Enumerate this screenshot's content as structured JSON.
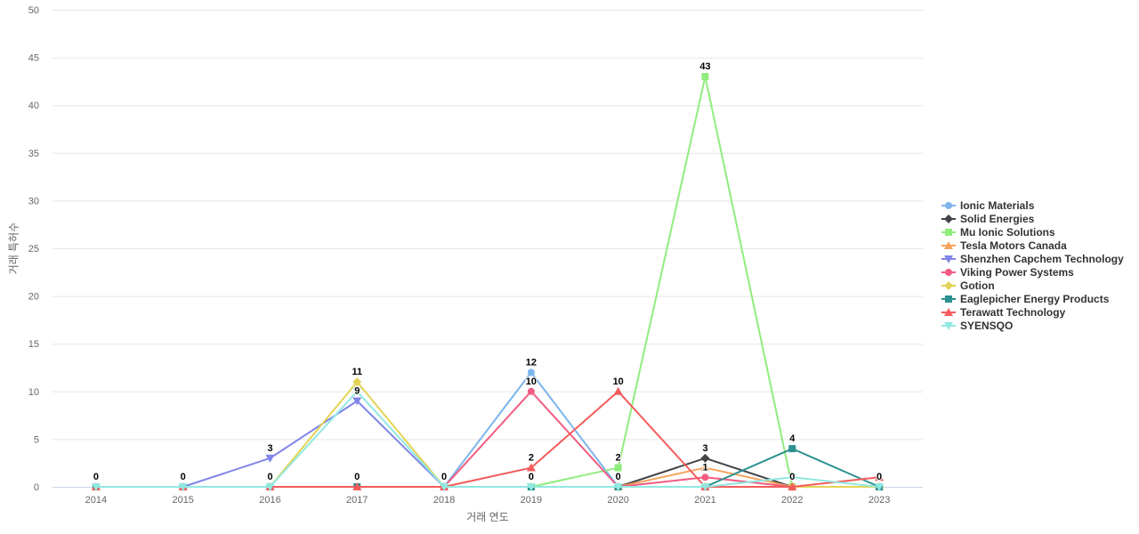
{
  "chart_data": {
    "type": "line",
    "xlabel": "거래 연도",
    "ylabel": "거래 특허수",
    "x": [
      2014,
      2015,
      2016,
      2017,
      2018,
      2019,
      2020,
      2021,
      2022,
      2023
    ],
    "ylim": [
      0,
      50
    ],
    "yticks": [
      0,
      5,
      10,
      15,
      20,
      25,
      30,
      35,
      40,
      45,
      50
    ],
    "grid": "horizontal",
    "legend_position": "right",
    "axis_line_color": "#ccd6eb",
    "grid_color": "#e6e6e6",
    "series": [
      {
        "name": "Ionic Materials",
        "color": "#7cb5ec",
        "marker": "circle",
        "values": [
          0,
          0,
          0,
          0,
          0,
          12,
          0,
          null,
          null,
          null
        ]
      },
      {
        "name": "Solid Energies",
        "color": "#434348",
        "marker": "diamond",
        "values": [
          null,
          null,
          null,
          null,
          null,
          null,
          0,
          3,
          0,
          null
        ]
      },
      {
        "name": "Mu Ionic Solutions",
        "color": "#90ed7d",
        "marker": "square",
        "values": [
          null,
          null,
          null,
          null,
          null,
          0,
          2,
          43,
          0,
          null
        ]
      },
      {
        "name": "Tesla Motors Canada",
        "color": "#f7a35c",
        "marker": "triangle",
        "values": [
          null,
          null,
          null,
          null,
          null,
          null,
          0,
          2,
          0,
          0
        ]
      },
      {
        "name": "Shenzhen Capchem Technology",
        "color": "#8085e9",
        "marker": "triangle-down",
        "values": [
          0,
          0,
          3,
          9,
          0,
          null,
          null,
          null,
          null,
          null
        ]
      },
      {
        "name": "Viking Power Systems",
        "color": "#f15c80",
        "marker": "circle",
        "values": [
          null,
          null,
          null,
          null,
          0,
          10,
          0,
          1,
          0,
          null
        ]
      },
      {
        "name": "Gotion",
        "color": "#e4d354",
        "marker": "diamond",
        "values": [
          null,
          null,
          0,
          11,
          0,
          0,
          0,
          0,
          0,
          0
        ]
      },
      {
        "name": "Eaglepicher Energy Products",
        "color": "#2b908f",
        "marker": "square",
        "values": [
          0,
          0,
          0,
          0,
          0,
          0,
          0,
          0,
          4,
          0
        ]
      },
      {
        "name": "Terawatt Technology",
        "color": "#f45b5b",
        "marker": "triangle",
        "values": [
          0,
          0,
          0,
          0,
          0,
          2,
          10,
          0,
          0,
          1
        ]
      },
      {
        "name": "SYENSQO",
        "color": "#91e8e1",
        "marker": "triangle-down",
        "values": [
          0,
          0,
          0,
          10,
          0,
          0,
          0,
          0,
          1,
          0
        ]
      }
    ],
    "visible_point_labels": [
      {
        "year": 2014,
        "value": 0,
        "text": "0"
      },
      {
        "year": 2015,
        "value": 0,
        "text": "0"
      },
      {
        "year": 2016,
        "value": 3,
        "text": "3"
      },
      {
        "year": 2016,
        "value": 0,
        "text": "0"
      },
      {
        "year": 2017,
        "value": 11,
        "text": "11"
      },
      {
        "year": 2017,
        "value": 9,
        "text": "9"
      },
      {
        "year": 2017,
        "value": 0,
        "text": "0"
      },
      {
        "year": 2018,
        "value": 0,
        "text": "0"
      },
      {
        "year": 2019,
        "value": 12,
        "text": "12"
      },
      {
        "year": 2019,
        "value": 10,
        "text": "10"
      },
      {
        "year": 2019,
        "value": 2,
        "text": "2"
      },
      {
        "year": 2019,
        "value": 0,
        "text": "0"
      },
      {
        "year": 2020,
        "value": 10,
        "text": "10"
      },
      {
        "year": 2020,
        "value": 2,
        "text": "2"
      },
      {
        "year": 2020,
        "value": 0,
        "text": "0"
      },
      {
        "year": 2021,
        "value": 43,
        "text": "43"
      },
      {
        "year": 2021,
        "value": 3,
        "text": "3"
      },
      {
        "year": 2021,
        "value": 1,
        "text": "1"
      },
      {
        "year": 2022,
        "value": 4,
        "text": "4"
      },
      {
        "year": 2022,
        "value": 0,
        "text": "0"
      },
      {
        "year": 2023,
        "value": 0,
        "text": "0"
      }
    ]
  }
}
